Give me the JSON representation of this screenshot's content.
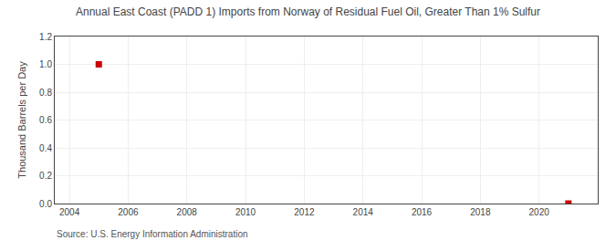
{
  "chart_data": {
    "type": "scatter",
    "title": "Annual East Coast (PADD 1) Imports from Norway of Residual Fuel Oil, Greater Than 1% Sulfur",
    "ylabel": "Thousand Barrels per Day",
    "x": [
      2005,
      2021
    ],
    "values": [
      1.0,
      0.0
    ],
    "color": "#cc0000",
    "marker": "square",
    "xlim": [
      2003.5,
      2022.0
    ],
    "ylim": [
      0.0,
      1.2
    ],
    "xticks": [
      2004,
      2006,
      2008,
      2010,
      2012,
      2014,
      2016,
      2018,
      2020
    ],
    "yticks": [
      {
        "value": 0.0,
        "label": "0.0"
      },
      0.2,
      0.4,
      0.6,
      0.8,
      {
        "value": 1.0,
        "label": "1.0"
      },
      1.2
    ],
    "grid": true,
    "annotations": [
      "Source: U.S. Energy Information Administration"
    ]
  }
}
